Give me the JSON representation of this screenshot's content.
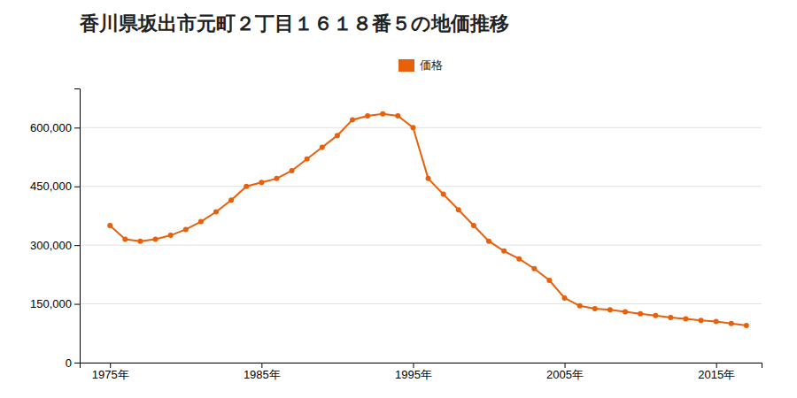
{
  "chart_data": {
    "type": "line",
    "title": "香川県坂出市元町２丁目１６１８番５の地価推移",
    "x": [
      1975,
      1976,
      1977,
      1978,
      1979,
      1980,
      1981,
      1982,
      1983,
      1984,
      1985,
      1986,
      1987,
      1988,
      1989,
      1990,
      1991,
      1992,
      1993,
      1994,
      1995,
      1996,
      1997,
      1998,
      1999,
      2000,
      2001,
      2002,
      2003,
      2004,
      2005,
      2006,
      2007,
      2008,
      2009,
      2010,
      2011,
      2012,
      2013,
      2014,
      2015,
      2016,
      2017
    ],
    "series": [
      {
        "name": "価格",
        "color": "#e8600a",
        "marker": "circle",
        "line_style": "solid",
        "values": [
          350000,
          315000,
          310000,
          315000,
          325000,
          340000,
          360000,
          385000,
          415000,
          450000,
          460000,
          470000,
          490000,
          520000,
          550000,
          580000,
          620000,
          630000,
          635000,
          630000,
          600000,
          470000,
          430000,
          390000,
          350000,
          310000,
          285000,
          265000,
          240000,
          210000,
          165000,
          145000,
          138000,
          135000,
          130000,
          125000,
          120000,
          115000,
          112000,
          108000,
          105000,
          100000,
          95000
        ]
      }
    ],
    "xlim": [
      1973,
      2018
    ],
    "xticks": [
      {
        "value": 1975,
        "label": "1975年"
      },
      {
        "value": 1985,
        "label": "1985年"
      },
      {
        "value": 1995,
        "label": "1995年"
      },
      {
        "value": 2005,
        "label": "2005年"
      },
      {
        "value": 2015,
        "label": "2015年"
      }
    ],
    "ylim": [
      0,
      700000
    ],
    "yticks": [
      0,
      {
        "value": 150000,
        "label": "150,000"
      },
      {
        "value": 300000,
        "label": "300,000"
      },
      {
        "value": 450000,
        "label": "450,000"
      },
      {
        "value": 600000,
        "label": "600,000"
      }
    ],
    "grid": true,
    "legend": "top"
  }
}
